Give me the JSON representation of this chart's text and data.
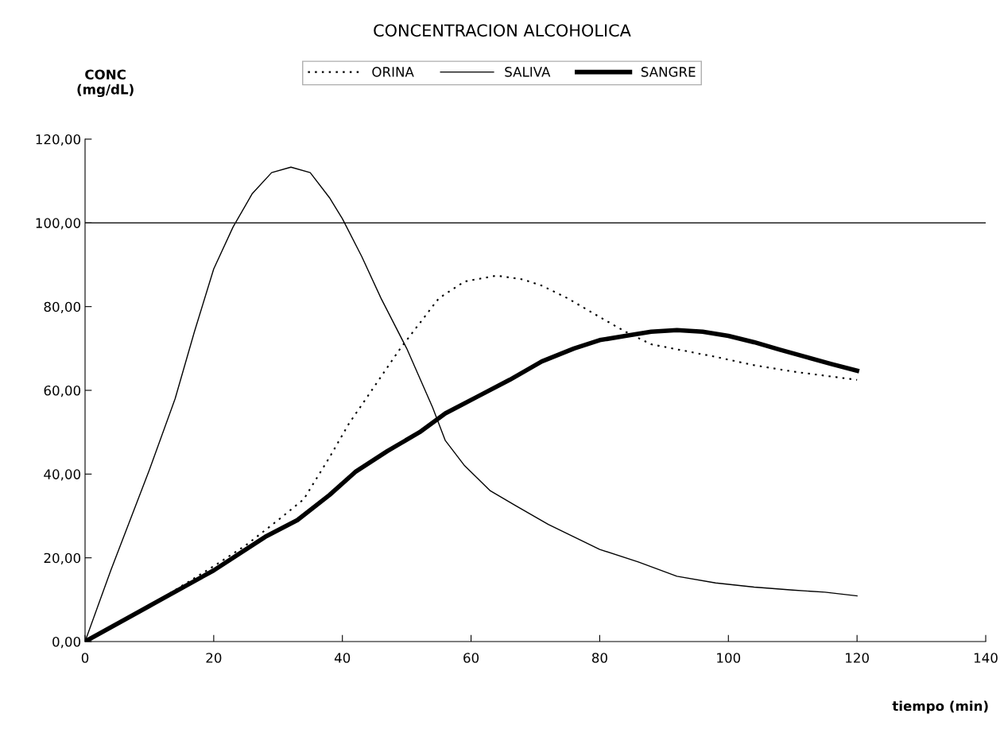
{
  "chart_data": {
    "type": "line",
    "title": "CONCENTRACION ALCOHOLICA",
    "ylabel": "CONC\n(mg/dL)",
    "xlabel": "tiempo (min)",
    "xlim": [
      0,
      140
    ],
    "xticks": [
      0,
      20,
      40,
      60,
      80,
      100,
      120,
      140
    ],
    "ylim": [
      0,
      120
    ],
    "yticks": [
      {
        "value": 0,
        "label": "0,00"
      },
      {
        "value": 20,
        "label": "20,00"
      },
      {
        "value": 40,
        "label": "40,00"
      },
      {
        "value": 60,
        "label": "60,00"
      },
      {
        "value": 80,
        "label": "80,00"
      },
      {
        "value": 100,
        "label": "100,00"
      },
      {
        "value": 120,
        "label": "120,00"
      }
    ],
    "grid": false,
    "legend": "top",
    "marker": "none",
    "ref_lines": [
      {
        "axis": "y",
        "value": 100,
        "color": "#000000",
        "line_style": "solid"
      }
    ],
    "series": [
      {
        "name": "ORINA",
        "color": "#000000",
        "line_style": "dotted",
        "x": [
          0,
          10,
          20,
          25,
          30,
          34,
          38,
          41,
          45,
          49,
          52,
          55,
          59,
          64,
          68,
          71,
          75,
          80,
          84,
          88,
          93,
          98,
          104,
          110,
          115,
          120
        ],
        "values": [
          0,
          8.5,
          18,
          23,
          29,
          34,
          44,
          52,
          61,
          70,
          76,
          82,
          86,
          87.4,
          86.5,
          85,
          82,
          77.5,
          74,
          71,
          69.5,
          68,
          66,
          64.5,
          63.5,
          62.5
        ]
      },
      {
        "name": "SALIVA",
        "color": "#000000",
        "line_style": "solid",
        "x": [
          0,
          4,
          7,
          10,
          14,
          17,
          20,
          23,
          26,
          29,
          32,
          35,
          38,
          40,
          43,
          46,
          50,
          54,
          56,
          59,
          63,
          67,
          72,
          76,
          80,
          86,
          92,
          98,
          104,
          110,
          115,
          120
        ],
        "values": [
          0,
          17,
          29,
          41,
          58,
          74,
          89,
          99,
          107,
          112,
          113.3,
          112,
          106,
          101,
          92,
          82,
          70,
          56,
          48,
          42,
          36,
          32.4,
          28,
          25,
          22,
          19,
          15.6,
          14,
          13,
          12.3,
          11.8,
          10.9
        ]
      },
      {
        "name": "SANGRE",
        "color": "#000000",
        "line_style": "solid",
        "x": [
          0,
          10,
          20,
          24,
          28,
          33,
          38,
          42,
          47,
          52,
          56,
          61,
          66,
          71,
          76,
          80,
          84,
          88,
          92,
          96,
          100,
          104,
          108,
          112,
          116,
          120
        ],
        "values": [
          0,
          8.5,
          17,
          21,
          25,
          29,
          35,
          40.5,
          45.5,
          50,
          54.5,
          58.5,
          62.5,
          66.9,
          70,
          72,
          73,
          74,
          74.4,
          74,
          73,
          71.5,
          69.7,
          68,
          66.3,
          64.7
        ]
      }
    ]
  }
}
